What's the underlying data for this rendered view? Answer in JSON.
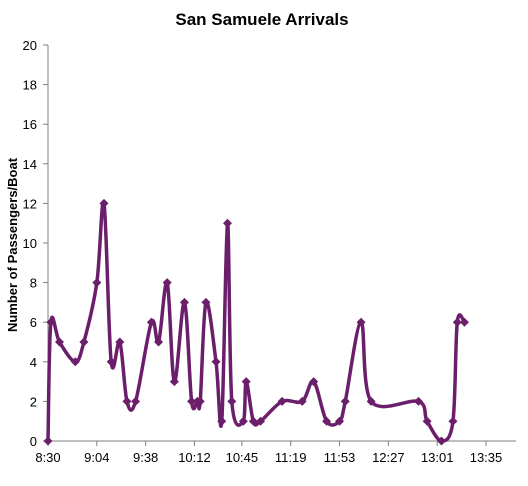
{
  "chart_data": {
    "type": "line",
    "title": "San Samuele Arrivals",
    "xlabel": "",
    "ylabel": "Number of Passengers/Boat",
    "x_tick_labels": [
      "8:30",
      "9:04",
      "9:38",
      "10:12",
      "10:45",
      "11:19",
      "11:53",
      "12:27",
      "13:01",
      "13:35"
    ],
    "xlim": [
      "8:30",
      "13:35"
    ],
    "ylim": [
      0,
      20
    ],
    "y_ticks": [
      0,
      2,
      4,
      6,
      8,
      10,
      12,
      14,
      16,
      18,
      20
    ],
    "grid": false,
    "legend": "none",
    "smooth": true,
    "colors": {
      "series": "#6b1f6b",
      "axis": "#7f7f7f"
    },
    "series": [
      {
        "x": [
          "8:30",
          "8:32",
          "8:38",
          "8:49",
          "8:55",
          "9:04",
          "9:09",
          "9:14",
          "9:20",
          "9:25",
          "9:31",
          "9:42",
          "9:47",
          "9:53",
          "9:58",
          "10:05",
          "10:10",
          "10:14",
          "10:16",
          "10:20",
          "10:27",
          "10:31",
          "10:35",
          "10:38",
          "10:46",
          "10:48",
          "10:53",
          "10:58",
          "11:13",
          "11:27",
          "11:35",
          "11:44",
          "11:53",
          "11:57",
          "12:08",
          "12:15",
          "12:48",
          "12:54",
          "13:04",
          "13:12",
          "13:15",
          "13:20"
        ],
        "y": [
          0,
          6,
          5,
          4,
          5,
          8,
          12,
          4,
          5,
          2,
          2,
          6,
          5,
          8,
          3,
          7,
          2,
          2,
          2,
          7,
          4,
          1,
          11,
          2,
          1,
          3,
          1,
          1,
          2,
          2,
          3,
          1,
          1,
          2,
          6,
          2,
          2,
          1,
          0,
          1,
          6,
          6
        ]
      }
    ]
  }
}
